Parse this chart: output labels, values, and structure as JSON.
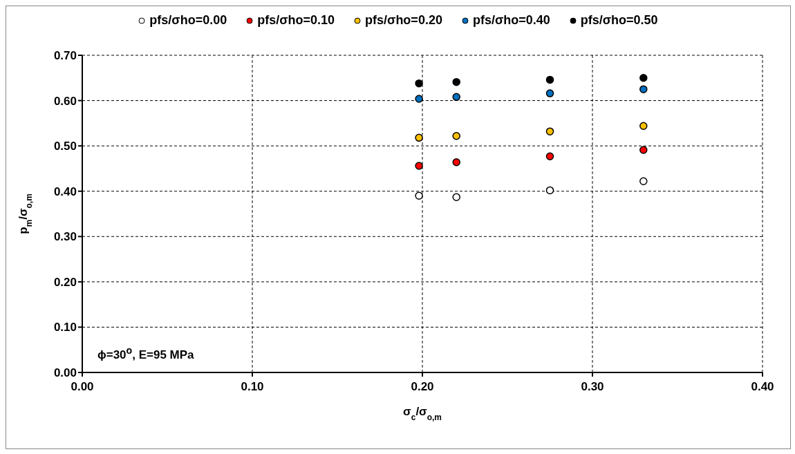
{
  "chart_data": {
    "type": "scatter",
    "xlabel": "σ$_{c}$/σ$_{o,m}$",
    "ylabel": "p$_{m}$/σ$_{o,m}$",
    "annotations": [
      "ϕ=30$^{o}$, E=95 MPa"
    ],
    "x": [
      0.198,
      0.22,
      0.275,
      0.33
    ],
    "series": [
      {
        "name": "pfs/σho=0.00",
        "color": "#ffffff",
        "values": [
          0.39,
          0.387,
          0.402,
          0.422
        ]
      },
      {
        "name": "pfs/σho=0.10",
        "color": "#ff0000",
        "values": [
          0.456,
          0.464,
          0.477,
          0.491
        ]
      },
      {
        "name": "pfs/σho=0.20",
        "color": "#ffc000",
        "values": [
          0.518,
          0.522,
          0.532,
          0.544
        ]
      },
      {
        "name": "pfs/σho=0.40",
        "color": "#0070c0",
        "values": [
          0.604,
          0.608,
          0.616,
          0.625
        ]
      },
      {
        "name": "pfs/σho=0.50",
        "color": "#000000",
        "values": [
          0.638,
          0.641,
          0.646,
          0.65
        ]
      }
    ],
    "xlim": [
      0,
      0.4
    ],
    "xticks": [
      {
        "value": 0,
        "label": "0.00"
      },
      {
        "value": 0.1,
        "label": "0.10"
      },
      {
        "value": 0.2,
        "label": "0.20"
      },
      {
        "value": 0.3,
        "label": "0.30"
      },
      {
        "value": 0.4,
        "label": "0.40"
      }
    ],
    "ylim": [
      0,
      0.7
    ],
    "yticks": [
      {
        "value": 0,
        "label": "0.00"
      },
      {
        "value": 0.1,
        "label": "0.10"
      },
      {
        "value": 0.2,
        "label": "0.20"
      },
      {
        "value": 0.3,
        "label": "0.30"
      },
      {
        "value": 0.4,
        "label": "0.40"
      },
      {
        "value": 0.5,
        "label": "0.50"
      },
      {
        "value": 0.6,
        "label": "0.60"
      },
      {
        "value": 0.7,
        "label": "0.70"
      }
    ],
    "grid": true,
    "legend": "top",
    "marker": "circle"
  }
}
